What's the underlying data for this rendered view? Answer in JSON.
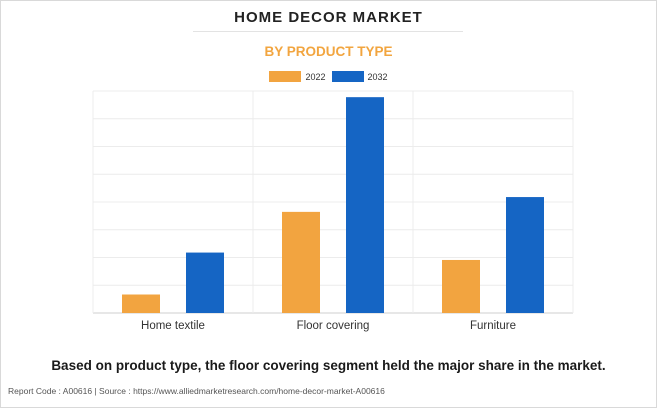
{
  "header": {
    "title": "HOME DECOR MARKET",
    "subtitle": "BY PRODUCT TYPE"
  },
  "colors": {
    "series_2022": "#f2a440",
    "series_2032": "#1565c4",
    "subtitle": "#f2a53f"
  },
  "chart_data": {
    "type": "bar",
    "categories": [
      "Home textile",
      "Floor covering",
      "Furniture"
    ],
    "series": [
      {
        "name": "2022",
        "values": [
          7.5,
          41,
          21.5
        ]
      },
      {
        "name": "2032",
        "values": [
          24.5,
          87.5,
          47
        ]
      }
    ],
    "ylim": [
      0,
      90
    ],
    "grid": true,
    "legend_position": "top-center",
    "xlabel": "",
    "ylabel": ""
  },
  "footer": {
    "statement": "Based on product type, the floor covering segment held the major share in the market.",
    "source": "Report Code : A00616  |  Source : https://www.alliedmarketresearch.com/home-decor-market-A00616"
  }
}
